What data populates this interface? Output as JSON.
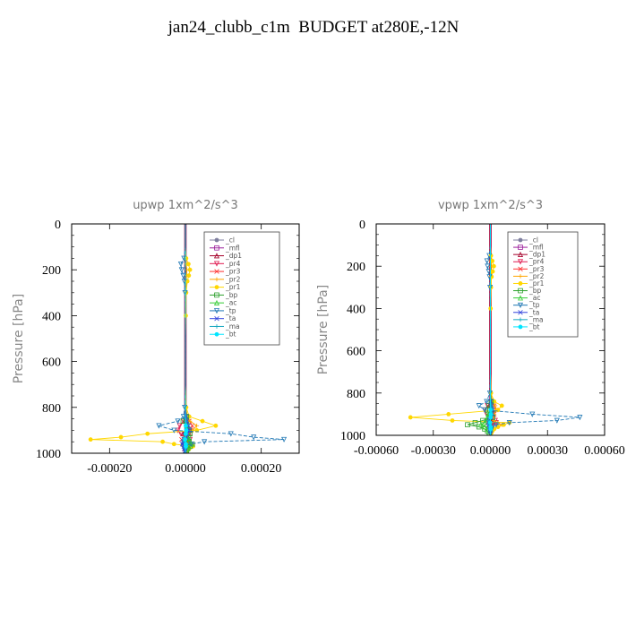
{
  "title": "jan24_clubb_c1m  BUDGET at280E,-12N",
  "chart_data": [
    {
      "type": "line",
      "title": "upwp   1xm^2/s^3",
      "ylabel": "Pressure [hPa]",
      "xlabel": "",
      "xlim": [
        -0.0003,
        0.0003
      ],
      "ylim": [
        1000,
        0
      ],
      "xticks": [
        -0.0002,
        0.0,
        0.0002
      ],
      "xtick_labels": [
        "-0.00020",
        "0.00000",
        "0.00020"
      ],
      "yticks": [
        0,
        200,
        400,
        600,
        800,
        1000
      ],
      "ytick_labels": [
        "0",
        "200",
        "400",
        "600",
        "800",
        "1000"
      ],
      "grid": false,
      "legend": "top-right",
      "y": [
        0,
        100,
        150,
        175,
        200,
        225,
        250,
        300,
        400,
        500,
        600,
        700,
        800,
        840,
        860,
        880,
        900,
        915,
        930,
        940,
        950,
        960,
        970,
        980,
        990,
        1000
      ],
      "series": [
        {
          "name": "_cl",
          "color": "#7f7f9f",
          "values": [
            0,
            0,
            0,
            0,
            0,
            0,
            0,
            0,
            0,
            0,
            0,
            0,
            0,
            0,
            0,
            0,
            0,
            0,
            0,
            0,
            0,
            0,
            0,
            0,
            0,
            0
          ]
        },
        {
          "name": "_mfl",
          "color": "#9c1f9c",
          "values": [
            0,
            0,
            0,
            0,
            0,
            0,
            0,
            0,
            0,
            0,
            0,
            0,
            0,
            0,
            0,
            0,
            0,
            0,
            0,
            0,
            0,
            0,
            0,
            0,
            0,
            0
          ]
        },
        {
          "name": "_dp1",
          "color": "#a5002a",
          "values": [
            0,
            0,
            0,
            0,
            0,
            0,
            0,
            0,
            0,
            0,
            0,
            0,
            0,
            2e-06,
            -3e-06,
            6e-06,
            1e-05,
            -6e-06,
            2e-06,
            -4e-06,
            6e-06,
            -5e-06,
            4e-06,
            -2e-06,
            1e-06,
            0
          ]
        },
        {
          "name": "_pr4",
          "color": "#e0194f",
          "values": [
            0,
            0,
            0,
            0,
            0,
            0,
            0,
            0,
            0,
            0,
            0,
            0,
            0,
            3e-06,
            -5e-06,
            -1.5e-05,
            -2e-05,
            -1.2e-05,
            4e-06,
            1.2e-05,
            8e-06,
            4e-06,
            2e-06,
            1e-06,
            0,
            0
          ]
        },
        {
          "name": "_pr3",
          "color": "#ff3030",
          "values": [
            0,
            0,
            0,
            0,
            0,
            0,
            0,
            0,
            0,
            0,
            0,
            0,
            0,
            4e-06,
            1e-05,
            1.8e-05,
            1.5e-05,
            1.2e-05,
            -3e-06,
            -1e-05,
            -6e-06,
            6e-06,
            4e-06,
            2e-06,
            1e-06,
            0
          ]
        },
        {
          "name": "_pr2",
          "color": "#ffa500",
          "values": [
            0,
            0,
            0,
            2e-06,
            4e-06,
            3e-06,
            2e-06,
            1e-06,
            0,
            0,
            0,
            0,
            2e-06,
            4e-06,
            1.2e-05,
            3e-05,
            2e-05,
            6e-06,
            4e-06,
            6e-06,
            1e-05,
            2e-05,
            1.2e-05,
            6e-06,
            3e-06,
            0
          ]
        },
        {
          "name": "_pr1",
          "color": "#ffd700",
          "values": [
            0,
            0,
            2e-06,
            8e-06,
            1.2e-05,
            9e-06,
            5e-06,
            2e-06,
            1e-06,
            0,
            0,
            0,
            2e-06,
            1e-05,
            4.5e-05,
            8e-05,
            3e-05,
            -0.0001,
            -0.00017,
            -0.00025,
            -6e-05,
            -3e-05,
            2e-05,
            1e-05,
            4e-06,
            0
          ]
        },
        {
          "name": "_bp",
          "color": "#2ca02c",
          "values": [
            0,
            0,
            0,
            0,
            0,
            0,
            0,
            0,
            0,
            0,
            0,
            0,
            0,
            3e-06,
            -6e-06,
            4e-06,
            1e-05,
            1.2e-05,
            8e-06,
            5e-06,
            1e-05,
            1.8e-05,
            1.2e-05,
            6e-06,
            3e-06,
            0
          ]
        },
        {
          "name": "_ac",
          "color": "#33cc33",
          "values": [
            0,
            0,
            0,
            0,
            0,
            0,
            0,
            0,
            0,
            0,
            0,
            0,
            0,
            2e-06,
            4e-06,
            6e-06,
            6e-06,
            4e-06,
            5e-06,
            6e-06,
            1.2e-05,
            1.6e-05,
            9e-06,
            5e-06,
            2e-06,
            0
          ]
        },
        {
          "name": "_tp",
          "color": "#1f77b4",
          "values": [
            0,
            0,
            -4e-06,
            -1.2e-05,
            -1e-05,
            -6e-06,
            -3e-06,
            -1e-06,
            0,
            0,
            0,
            0,
            -2e-06,
            -5e-06,
            -2e-05,
            -7e-05,
            -3e-05,
            0.00012,
            0.00018,
            0.00026,
            5e-05,
            1.5e-05,
            -6e-06,
            -2e-06,
            -1e-06,
            0
          ]
        },
        {
          "name": "_ta",
          "color": "#3344dd",
          "values": [
            0,
            0,
            0,
            0,
            0,
            0,
            0,
            0,
            0,
            0,
            0,
            0,
            0,
            2e-06,
            4e-06,
            8e-06,
            1e-05,
            6e-06,
            3e-06,
            -4e-06,
            -6e-06,
            -8e-06,
            -4e-06,
            -2e-06,
            -1e-06,
            0
          ]
        },
        {
          "name": "_ma",
          "color": "#17a7bf",
          "values": [
            0,
            0,
            0,
            0,
            0,
            0,
            0,
            0,
            0,
            0,
            0,
            0,
            0,
            0,
            2e-06,
            4e-06,
            6e-06,
            -3e-06,
            -4e-06,
            -6e-06,
            -3e-06,
            3e-06,
            2e-06,
            1e-06,
            0,
            0
          ]
        },
        {
          "name": "_bt",
          "color": "#00e5ff",
          "values": [
            0,
            0,
            0,
            0,
            0,
            0,
            0,
            0,
            0,
            0,
            0,
            0,
            0,
            0,
            0,
            1e-06,
            2e-06,
            1e-06,
            0,
            -1e-06,
            0,
            1e-06,
            1e-06,
            0,
            0,
            0
          ]
        }
      ]
    },
    {
      "type": "line",
      "title": "vpwp   1xm^2/s^3",
      "ylabel": "Pressure [hPa]",
      "xlabel": "",
      "xlim": [
        -0.0006,
        0.0006
      ],
      "ylim": [
        1000,
        0
      ],
      "xticks": [
        -0.0006,
        -0.0003,
        0.0,
        0.0003,
        0.0006
      ],
      "xtick_labels": [
        "-0.00060",
        "-0.00030",
        "0.00000",
        "0.00030",
        "0.00060"
      ],
      "yticks": [
        0,
        200,
        400,
        600,
        800,
        1000
      ],
      "ytick_labels": [
        "0",
        "200",
        "400",
        "600",
        "800",
        "1000"
      ],
      "grid": false,
      "legend": "top-right",
      "y": [
        0,
        100,
        150,
        175,
        200,
        225,
        250,
        300,
        400,
        500,
        600,
        700,
        800,
        840,
        860,
        880,
        900,
        915,
        930,
        940,
        950,
        960,
        970,
        980,
        990,
        1000
      ],
      "series": [
        {
          "name": "_cl",
          "color": "#7f7f9f",
          "values": [
            0,
            0,
            0,
            0,
            0,
            0,
            0,
            0,
            0,
            0,
            0,
            0,
            0,
            0,
            0,
            0,
            0,
            0,
            0,
            0,
            0,
            0,
            0,
            0,
            0,
            0
          ]
        },
        {
          "name": "_mfl",
          "color": "#9c1f9c",
          "values": [
            0,
            0,
            0,
            0,
            0,
            0,
            0,
            0,
            0,
            0,
            0,
            0,
            0,
            0,
            0,
            0,
            0,
            0,
            0,
            0,
            0,
            0,
            0,
            0,
            0,
            0
          ]
        },
        {
          "name": "_dp1",
          "color": "#a5002a",
          "values": [
            0,
            0,
            0,
            0,
            0,
            0,
            0,
            0,
            0,
            0,
            0,
            0,
            0,
            4e-06,
            -6e-06,
            1e-05,
            1.2e-05,
            -8e-06,
            5e-06,
            1.2e-05,
            -6e-06,
            4e-06,
            2e-06,
            1e-06,
            0,
            0
          ]
        },
        {
          "name": "_pr4",
          "color": "#e0194f",
          "values": [
            0,
            0,
            0,
            0,
            0,
            0,
            0,
            0,
            0,
            0,
            0,
            0,
            0,
            6e-06,
            -1.5e-05,
            -3e-05,
            -2e-05,
            1e-05,
            2.5e-05,
            3e-05,
            1e-05,
            4e-06,
            2e-06,
            1e-06,
            0,
            0
          ]
        },
        {
          "name": "_pr3",
          "color": "#ff3030",
          "values": [
            0,
            0,
            0,
            0,
            0,
            0,
            0,
            0,
            0,
            0,
            0,
            0,
            0,
            8e-06,
            2e-05,
            3e-05,
            2e-05,
            -1e-05,
            -2e-05,
            -1.5e-05,
            6e-06,
            4e-06,
            2e-06,
            1e-06,
            0,
            0
          ]
        },
        {
          "name": "_pr2",
          "color": "#ffa500",
          "values": [
            0,
            0,
            0,
            3e-06,
            6e-06,
            5e-06,
            3e-06,
            1e-06,
            0,
            0,
            0,
            0,
            3e-06,
            1e-05,
            2.5e-05,
            3e-05,
            2e-05,
            1.2e-05,
            1.8e-05,
            4e-05,
            6e-05,
            4e-05,
            2e-05,
            1e-05,
            5e-06,
            0
          ]
        },
        {
          "name": "_pr1",
          "color": "#ffd700",
          "values": [
            0,
            0,
            3e-06,
            1e-05,
            1.8e-05,
            1.2e-05,
            6e-06,
            3e-06,
            1e-06,
            0,
            0,
            0,
            3e-06,
            2e-05,
            6e-05,
            4e-05,
            -0.00022,
            -0.00042,
            -0.0002,
            0.0001,
            7e-05,
            4e-05,
            2e-05,
            1e-05,
            4e-06,
            0
          ]
        },
        {
          "name": "_bp",
          "color": "#2ca02c",
          "values": [
            0,
            0,
            0,
            0,
            0,
            0,
            0,
            0,
            0,
            0,
            0,
            0,
            0,
            4e-06,
            -8e-06,
            -1.5e-05,
            -1e-05,
            1.2e-05,
            -4e-05,
            -8e-05,
            -0.00012,
            -6e-05,
            -3e-05,
            -1.5e-05,
            -6e-06,
            0
          ]
        },
        {
          "name": "_ac",
          "color": "#33cc33",
          "values": [
            0,
            0,
            0,
            0,
            0,
            0,
            0,
            0,
            0,
            0,
            0,
            0,
            0,
            3e-06,
            6e-06,
            1e-05,
            -1e-05,
            -1.5e-05,
            -2e-05,
            -3e-05,
            -5e-05,
            -3e-05,
            -1.5e-05,
            -8e-06,
            -3e-06,
            0
          ]
        },
        {
          "name": "_tp",
          "color": "#1f77b4",
          "values": [
            0,
            0,
            -6e-06,
            -1.8e-05,
            -1.5e-05,
            -9e-06,
            -5e-06,
            -2e-06,
            0,
            0,
            0,
            0,
            -3e-06,
            -2e-05,
            -6e-05,
            -3e-05,
            0.00022,
            0.00047,
            0.00035,
            0.0001,
            3e-05,
            1.2e-05,
            5e-06,
            2e-06,
            1e-06,
            0
          ]
        },
        {
          "name": "_ta",
          "color": "#3344dd",
          "values": [
            0,
            0,
            0,
            0,
            0,
            0,
            0,
            0,
            0,
            0,
            0,
            0,
            0,
            2e-06,
            6e-06,
            1e-05,
            8e-06,
            4e-06,
            -6e-06,
            -1e-05,
            -8e-06,
            -4e-06,
            -2e-06,
            -1e-06,
            0,
            0
          ]
        },
        {
          "name": "_ma",
          "color": "#17a7bf",
          "values": [
            0,
            0,
            0,
            0,
            0,
            0,
            0,
            0,
            0,
            0,
            0,
            0,
            0,
            0,
            4e-06,
            8e-06,
            1e-05,
            -6e-06,
            -1e-05,
            -1.2e-05,
            -6e-06,
            4e-06,
            3e-06,
            1e-06,
            0,
            0
          ]
        },
        {
          "name": "_bt",
          "color": "#00e5ff",
          "values": [
            0,
            0,
            0,
            0,
            0,
            0,
            0,
            0,
            0,
            0,
            0,
            0,
            0,
            0,
            0,
            1e-06,
            2e-06,
            1e-06,
            0,
            -1e-06,
            0,
            1e-06,
            1e-06,
            0,
            0,
            0
          ]
        }
      ]
    }
  ]
}
